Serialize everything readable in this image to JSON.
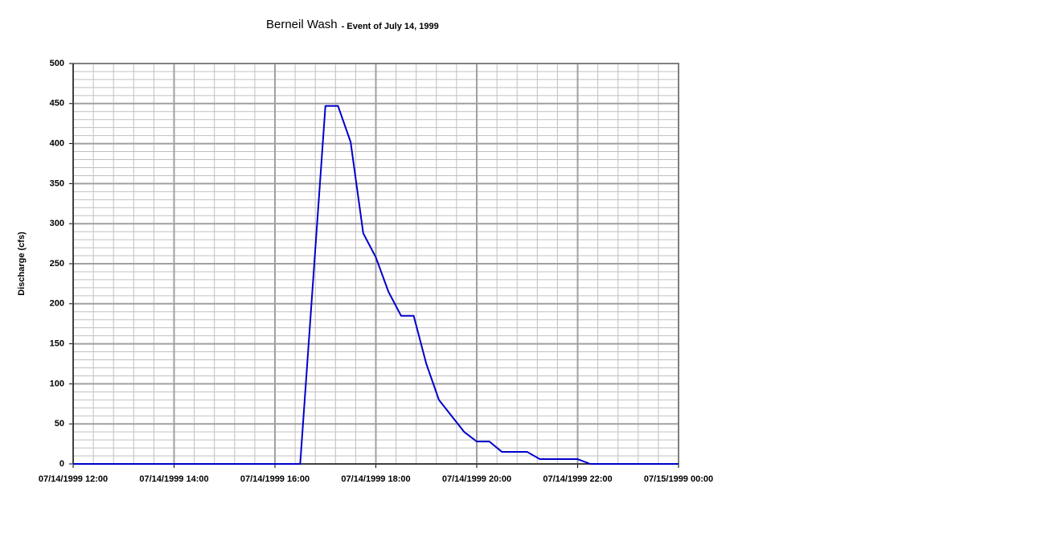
{
  "chart_data": {
    "type": "line",
    "title": "Berneil Wash",
    "subtitle": "- Event of July 14, 1999",
    "y_label": "Discharge (cfs)",
    "x": [
      "07/14/1999 12:00",
      "07/14/1999 16:30",
      "07/14/1999 17:00",
      "07/14/1999 17:15",
      "07/14/1999 17:30",
      "07/14/1999 17:45",
      "07/14/1999 18:00",
      "07/14/1999 18:15",
      "07/14/1999 18:30",
      "07/14/1999 18:45",
      "07/14/1999 19:00",
      "07/14/1999 19:15",
      "07/14/1999 19:30",
      "07/14/1999 19:45",
      "07/14/1999 20:00",
      "07/14/1999 20:15",
      "07/14/1999 20:30",
      "07/14/1999 20:45",
      "07/14/1999 21:00",
      "07/14/1999 21:15",
      "07/14/1999 21:30",
      "07/14/1999 21:45",
      "07/14/1999 22:00",
      "07/14/1999 22:15",
      "07/15/1999 00:00"
    ],
    "series": [
      {
        "name": "Discharge",
        "color": "#0000cc",
        "values": [
          0,
          0,
          447,
          447,
          402,
          288,
          258,
          215,
          185,
          185,
          125,
          80,
          60,
          40,
          28,
          28,
          15,
          15,
          15,
          6,
          6,
          6,
          6,
          0,
          0
        ]
      }
    ],
    "xlim": [
      "07/14/1999 12:00",
      "07/15/1999 00:00"
    ],
    "xticks": [
      "07/14/1999 12:00",
      "07/14/1999 14:00",
      "07/14/1999 16:00",
      "07/14/1999 18:00",
      "07/14/1999 20:00",
      "07/14/1999 22:00",
      "07/15/1999 00:00"
    ],
    "ylim": [
      0,
      500
    ],
    "yticks": [
      0,
      50,
      100,
      150,
      200,
      250,
      300,
      350,
      400,
      450,
      500
    ],
    "grid": true,
    "minor_grid": true
  }
}
